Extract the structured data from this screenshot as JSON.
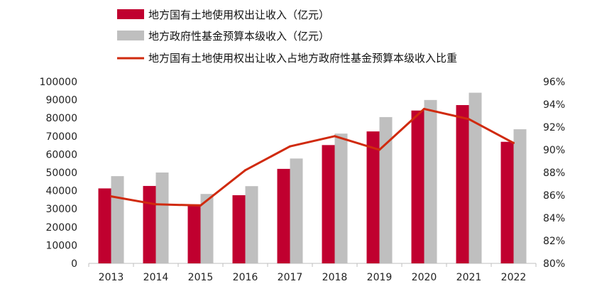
{
  "chart_data": {
    "type": "bar",
    "categories": [
      "2013",
      "2014",
      "2015",
      "2016",
      "2017",
      "2018",
      "2019",
      "2020",
      "2021",
      "2022"
    ],
    "series": [
      {
        "name": "地方国有土地使用权出让收入（亿元）",
        "type": "bar",
        "axis": "left",
        "color": "#C0002F",
        "values": [
          41250,
          42600,
          32500,
          37500,
          52000,
          65100,
          72600,
          84100,
          87100,
          66900
        ]
      },
      {
        "name": "地方政府性基金预算本级收入（亿元）",
        "type": "bar",
        "axis": "left",
        "color": "#BFBFBF",
        "values": [
          48000,
          50000,
          38200,
          42500,
          57700,
          71400,
          80500,
          89900,
          93900,
          73800
        ]
      },
      {
        "name": "地方国有土地使用权出让收入占地方政府性基金预算本级收入比重",
        "type": "line",
        "axis": "right",
        "color": "#D02A0E",
        "values": [
          85.9,
          85.2,
          85.1,
          88.2,
          90.3,
          91.2,
          90.0,
          93.6,
          92.7,
          90.6
        ]
      }
    ],
    "left_axis": {
      "ylim": [
        0,
        100000
      ],
      "ticks": [
        "0",
        "10000",
        "20000",
        "30000",
        "40000",
        "50000",
        "60000",
        "70000",
        "80000",
        "90000",
        "100000"
      ]
    },
    "right_axis": {
      "ylim": [
        80,
        96
      ],
      "ticks": [
        "80%",
        "82%",
        "84%",
        "86%",
        "88%",
        "90%",
        "92%",
        "94%",
        "96%"
      ]
    },
    "grid": false,
    "legend_position": "top-left"
  }
}
